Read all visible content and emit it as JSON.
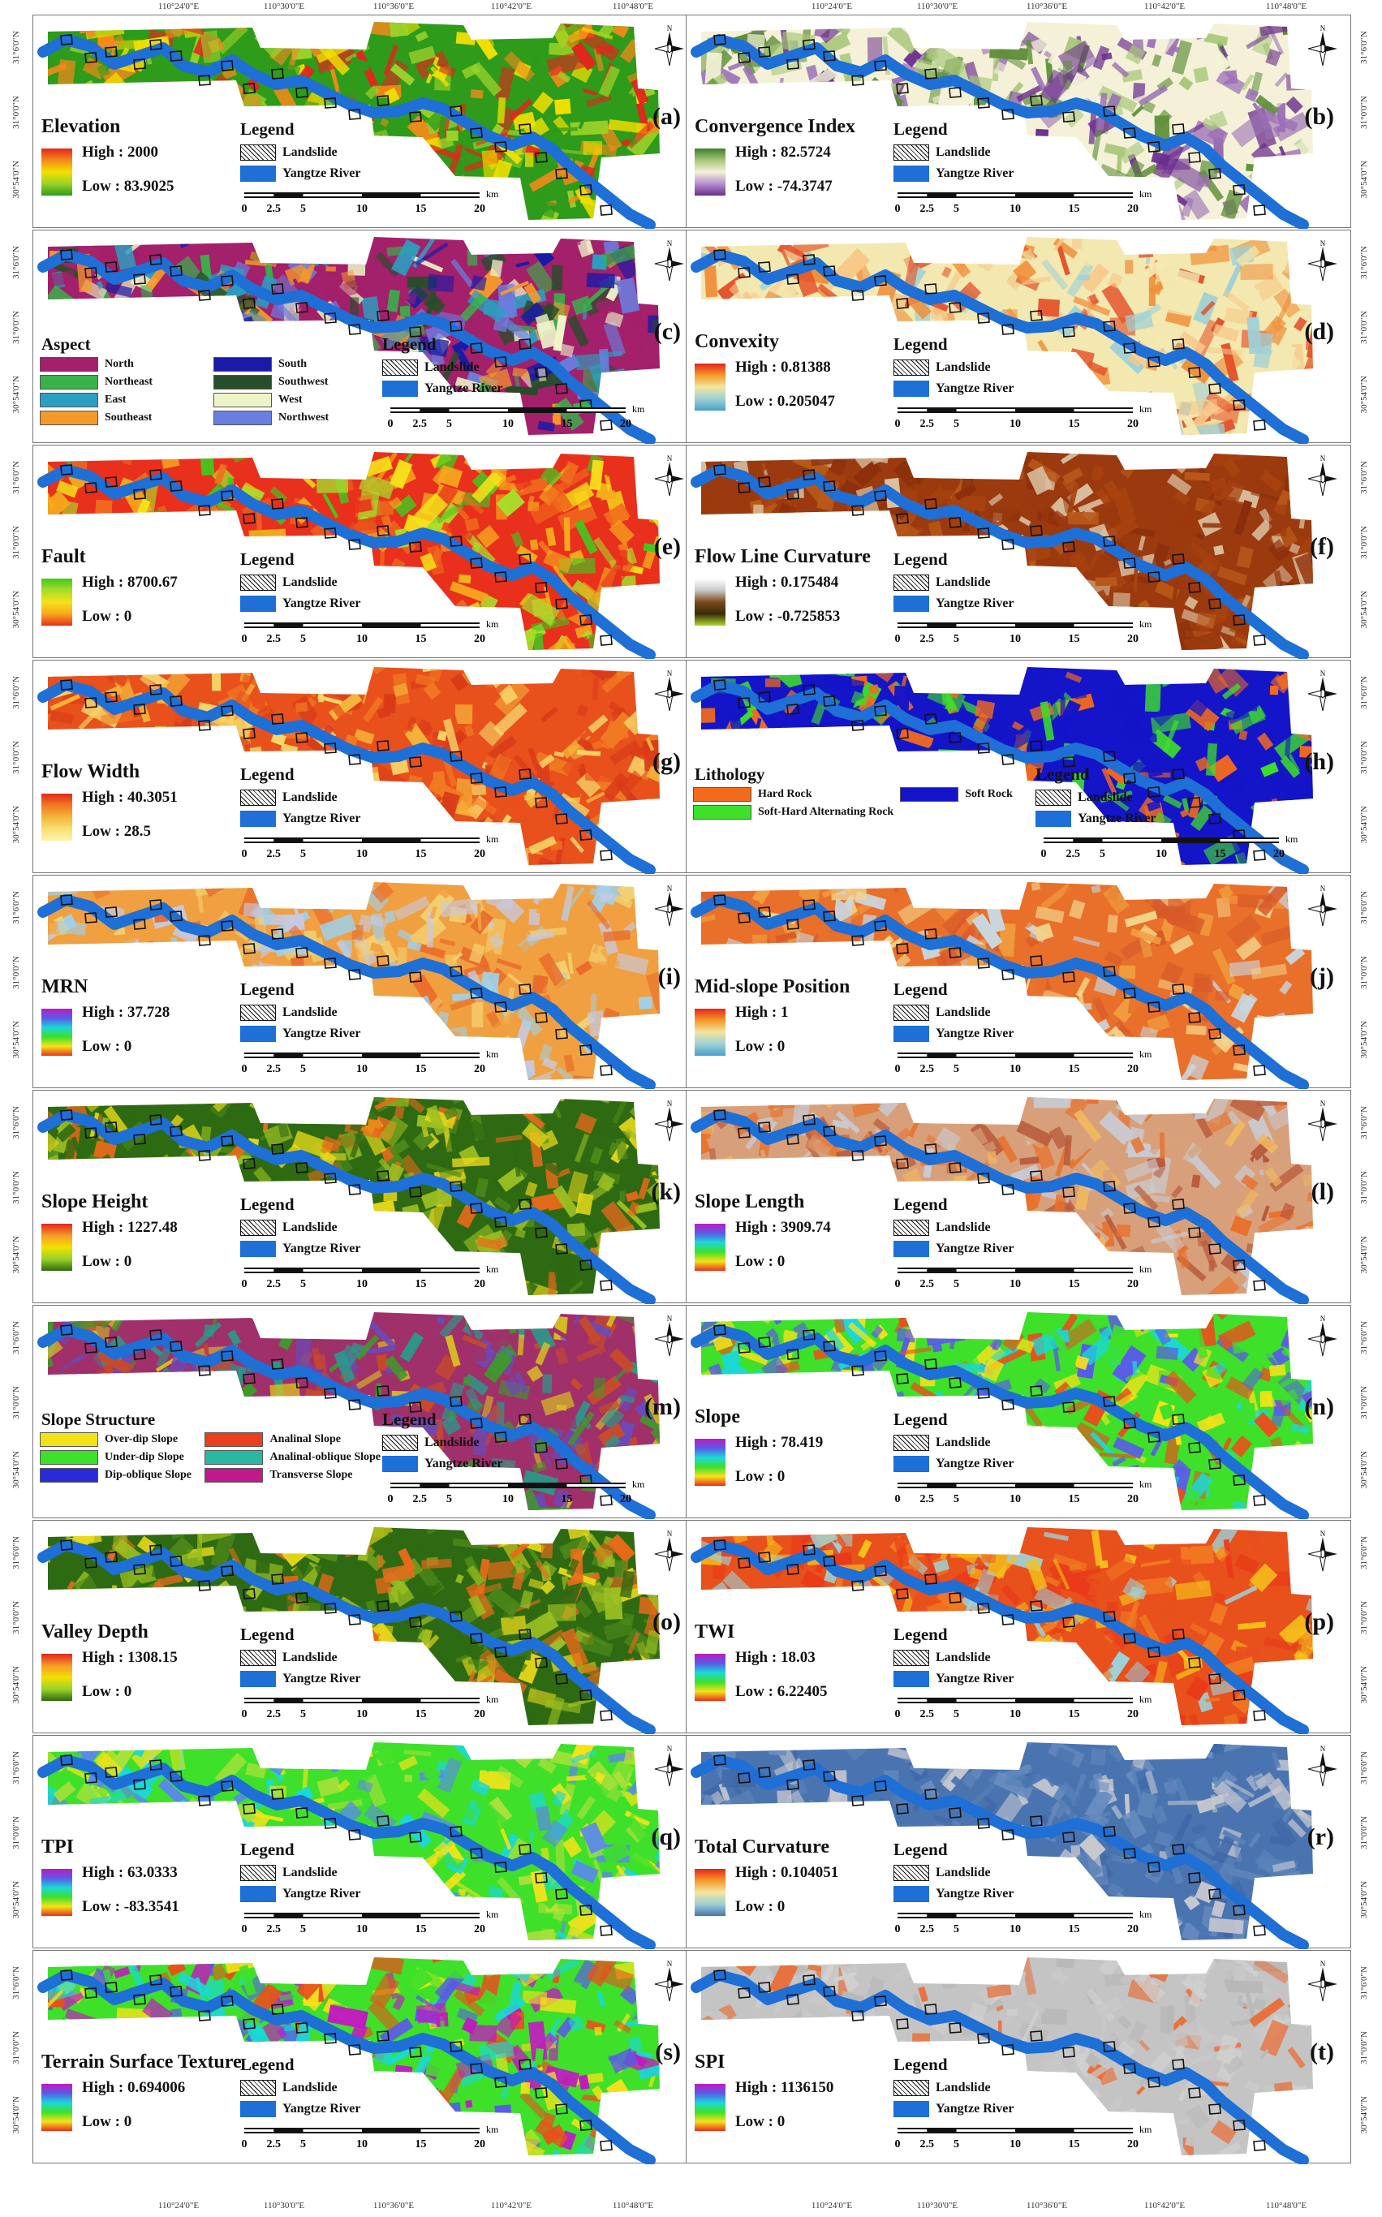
{
  "coords": {
    "lon_top": [
      "110°24'0\"E",
      "110°30'0\"E",
      "110°36'0\"E",
      "110°42'0\"E",
      "110°48'0\"E",
      "110°24'0\"E",
      "110°30'0\"E",
      "110°36'0\"E",
      "110°42'0\"E",
      "110°48'0\"E"
    ],
    "lon_bottom": [
      "110°24'0\"E",
      "110°30'0\"E",
      "110°36'0\"E",
      "110°42'0\"E",
      "110°48'0\"E",
      "110°24'0\"E",
      "110°30'0\"E",
      "110°36'0\"E",
      "110°42'0\"E",
      "110°48'0\"E"
    ],
    "lat": [
      "31°6'0\"N",
      "31°0'0\"N",
      "30°54'0\"N"
    ]
  },
  "map_legend": {
    "title": "Legend",
    "landslide": "Landslide",
    "river": "Yangtze River"
  },
  "scale": {
    "unit": "km",
    "ticks": [
      "0",
      "2.5",
      "5",
      "10",
      "15",
      "20"
    ]
  },
  "north_label": "N",
  "panels": [
    {
      "id": "(a)",
      "title": "Elevation",
      "high": "High : 2000",
      "low": "Low : 83.9025",
      "palette": [
        "#2e9b1a",
        "#9bd12a",
        "#f2e000",
        "#f58a1a",
        "#e2261c"
      ],
      "grad": [
        "#e2261c",
        "#f58a1a",
        "#f2e000",
        "#9bd12a",
        "#2e9b1a"
      ]
    },
    {
      "id": "(b)",
      "title": "Convergence Index",
      "high": "High : 82.5724",
      "low": "Low : -74.3747",
      "palette": [
        "#f4f1d8",
        "#a7c779",
        "#5f8f3a",
        "#9b6fb6",
        "#6b2e8e"
      ],
      "grad": [
        "#3d7f2a",
        "#a7c779",
        "#f4f1d8",
        "#b48fd0",
        "#6b2e8e"
      ]
    },
    {
      "id": "(c)",
      "title": "Aspect",
      "legend_title": "Legend",
      "categories": [
        {
          "label": "North",
          "color": "#a3206a"
        },
        {
          "label": "South",
          "color": "#1a1aa8"
        },
        {
          "label": "Northeast",
          "color": "#38b34a"
        },
        {
          "label": "Southwest",
          "color": "#284d2a"
        },
        {
          "label": "East",
          "color": "#2a9fc2"
        },
        {
          "label": "West",
          "color": "#eef4c8"
        },
        {
          "label": "Southeast",
          "color": "#f59a2a"
        },
        {
          "label": "Northwest",
          "color": "#6a7ee0"
        }
      ],
      "palette": [
        "#a3206a",
        "#38b34a",
        "#2a9fc2",
        "#f59a2a",
        "#1a1aa8",
        "#284d2a",
        "#eef4c8",
        "#6a7ee0"
      ]
    },
    {
      "id": "(d)",
      "title": "Convexity",
      "high": "High : 0.81388",
      "low": "Low : 0.205047",
      "palette": [
        "#f3e8b0",
        "#f7c98a",
        "#ef8f3a",
        "#e4542c",
        "#9ed0d6"
      ],
      "grad": [
        "#e2261c",
        "#f59a2a",
        "#f2e6a0",
        "#9ed0d6",
        "#4aa0c8"
      ]
    },
    {
      "id": "(e)",
      "title": "Fault",
      "high": "High : 8700.67",
      "low": "Low : 0",
      "palette": [
        "#e8301c",
        "#f06e1e",
        "#f7a81e",
        "#f5e21a",
        "#a9dc2a",
        "#42c81e"
      ],
      "grad": [
        "#42c81e",
        "#a9dc2a",
        "#f5e21a",
        "#f7a81e",
        "#e8301c"
      ]
    },
    {
      "id": "(f)",
      "title": "Flow Line Curvature",
      "high": "High : 0.175484",
      "low": "Low : -0.725853",
      "palette": [
        "#9b3a0e",
        "#a8420f",
        "#8a2e0c",
        "#b8591a",
        "#d8c0a0"
      ],
      "grad": [
        "#ffffff",
        "#c9c9c9",
        "#7a4a1a",
        "#3a2a0a",
        "#a9dc2a"
      ]
    },
    {
      "id": "(g)",
      "title": "Flow Width",
      "high": "High : 40.3051",
      "low": "Low : 28.5",
      "palette": [
        "#e8501c",
        "#f07a22",
        "#d93a18",
        "#f5b53a",
        "#f8d86a"
      ],
      "grad": [
        "#e02a1a",
        "#f07a22",
        "#f5b53a",
        "#f8e070",
        "#fbf3b0"
      ]
    },
    {
      "id": "(h)",
      "title": "Lithology",
      "legend_title": "Legend",
      "categories": [
        {
          "label": "Hard Rock",
          "color": "#f26b1d"
        },
        {
          "label": "Soft Rock",
          "color": "#1414c8"
        },
        {
          "label": "Soft-Hard Alternating Rock",
          "color": "#3ee02a"
        }
      ],
      "palette": [
        "#1414c8",
        "#1414c8",
        "#3ee02a",
        "#f26b1d"
      ]
    },
    {
      "id": "(i)",
      "title": "MRN",
      "high": "High : 37.728",
      "low": "Low : 0",
      "palette": [
        "#f0a040",
        "#e86a2a",
        "#c7c9e0",
        "#f4d070",
        "#a0d0e8"
      ],
      "grad": [
        "#c01ac0",
        "#5a5ae8",
        "#1ad8d8",
        "#3ee02a",
        "#f5e21a",
        "#e8301c"
      ]
    },
    {
      "id": "(j)",
      "title": "Mid-slope Position",
      "high": "High : 1",
      "low": "Low : 0",
      "palette": [
        "#e8702a",
        "#f0a040",
        "#c9d7e0",
        "#f4d38a",
        "#d85a2a"
      ],
      "grad": [
        "#e2261c",
        "#f59a2a",
        "#f2e6a0",
        "#9ed0d6",
        "#4aa0c8"
      ]
    },
    {
      "id": "(k)",
      "title": "Slope Height",
      "high": "High : 1227.48",
      "low": "Low : 0",
      "palette": [
        "#2e6a12",
        "#4f8a1a",
        "#9bbf22",
        "#e8d81a",
        "#e86a1a"
      ],
      "grad": [
        "#e2261c",
        "#f59a2a",
        "#f2e000",
        "#9bd12a",
        "#2e6a12"
      ]
    },
    {
      "id": "(l)",
      "title": "Slope Length",
      "high": "High : 3909.74",
      "low": "Low : 0",
      "palette": [
        "#d8a07a",
        "#e8702a",
        "#c9c9d0",
        "#f0b860",
        "#b8583a"
      ],
      "grad": [
        "#c01ac0",
        "#5a5ae8",
        "#1ad8d8",
        "#3ee02a",
        "#f5e21a",
        "#e8301c"
      ]
    },
    {
      "id": "(m)",
      "title": "Slope Structure",
      "legend_title": "Legend",
      "river": "Yangtze River",
      "categories": [
        {
          "label": "Over-dip Slope",
          "color": "#f2e21a"
        },
        {
          "label": "Analinal Slope",
          "color": "#e8401c"
        },
        {
          "label": "Under-dip Slope",
          "color": "#3ee02a"
        },
        {
          "label": "Analinal-oblique Slope",
          "color": "#2ab8a0"
        },
        {
          "label": "Dip-oblique Slope",
          "color": "#2a2ad8"
        },
        {
          "label": "Transverse Slope",
          "color": "#c01a8a"
        }
      ],
      "palette": [
        "#a0306a",
        "#2a9a8a",
        "#c84a2a",
        "#3e9a2a",
        "#6a4ab8",
        "#d8c020"
      ]
    },
    {
      "id": "(n)",
      "title": "Slope",
      "high": "High : 78.419",
      "low": "Low : 0",
      "palette": [
        "#3ee02a",
        "#f5e21a",
        "#1ad8d8",
        "#5a5ae8",
        "#e8501c"
      ],
      "grad": [
        "#c01ac0",
        "#5a5ae8",
        "#1ad8d8",
        "#3ee02a",
        "#f5e21a",
        "#e8301c"
      ]
    },
    {
      "id": "(o)",
      "title": "Valley Depth",
      "high": "High : 1308.15",
      "low": "Low : 0",
      "palette": [
        "#2e6a12",
        "#4f8a1a",
        "#9bbf22",
        "#e8d81a",
        "#e86a1a"
      ],
      "grad": [
        "#e2261c",
        "#f59a2a",
        "#f2e000",
        "#9bd12a",
        "#2e6a12"
      ]
    },
    {
      "id": "(p)",
      "title": "TWI",
      "high": "High : 18.03",
      "low": "Low : 6.22405",
      "palette": [
        "#e8501c",
        "#f07a22",
        "#f5c21a",
        "#9ed0d6",
        "#e83a1a"
      ],
      "grad": [
        "#c01ac0",
        "#5a5ae8",
        "#1ad8d8",
        "#3ee02a",
        "#f5e21a",
        "#e8301c"
      ]
    },
    {
      "id": "(q)",
      "title": "TPI",
      "high": "High : 63.0333",
      "low": "Low : -83.3541",
      "palette": [
        "#3ee02a",
        "#a9e03a",
        "#1ad8d8",
        "#5a8ae8",
        "#f5e21a"
      ],
      "grad": [
        "#c01ac0",
        "#5a5ae8",
        "#1ad8d8",
        "#3ee02a",
        "#f5e21a",
        "#e8301c"
      ]
    },
    {
      "id": "(r)",
      "title": "Total Curvature",
      "high": "High : 0.104051",
      "low": "Low : 0",
      "palette": [
        "#4a74b0",
        "#5a82b8",
        "#4068a8",
        "#6a8ec0",
        "#c9c9d0"
      ],
      "grad": [
        "#e2261c",
        "#f59a2a",
        "#f2e6a0",
        "#9ed0d6",
        "#4a74b0"
      ]
    },
    {
      "id": "(s)",
      "title": "Terrain Surface Texture",
      "high": "High : 0.694006",
      "low": "Low : 0",
      "palette": [
        "#3ee02a",
        "#f5e21a",
        "#1ad8d8",
        "#5a5ae8",
        "#e8501c",
        "#c01ac0"
      ],
      "grad": [
        "#c01ac0",
        "#5a5ae8",
        "#1ad8d8",
        "#3ee02a",
        "#f5e21a",
        "#e8301c"
      ]
    },
    {
      "id": "(t)",
      "title": "SPI",
      "high": "High : 1136150",
      "low": "Low : 0",
      "palette": [
        "#c4c4c4",
        "#b8b8b8",
        "#d0d0d0",
        "#e8703a",
        "#c8c8c8"
      ],
      "grad": [
        "#c01ac0",
        "#5a5ae8",
        "#1ad8d8",
        "#3ee02a",
        "#f5e21a",
        "#e8301c"
      ]
    }
  ]
}
